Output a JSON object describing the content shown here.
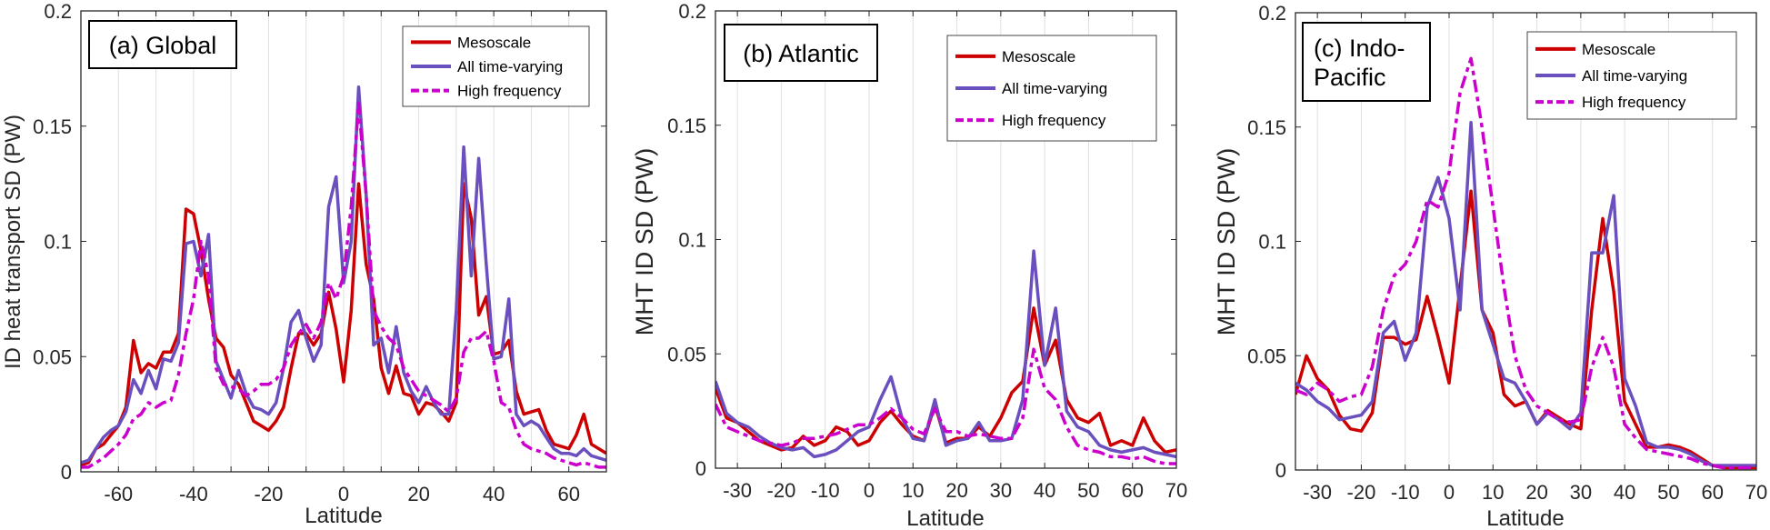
{
  "colors": {
    "mesoscale": "#cc0000",
    "all_time_varying": "#6a4fbf",
    "high_frequency": "#cc00cc",
    "axis": "#262626",
    "grid": "#e0e0e0"
  },
  "chart_data": [
    {
      "type": "line",
      "panel": "a",
      "annotation": "(a) Global",
      "title": "",
      "xlabel": "Latitude",
      "ylabel": "ID heat transport  SD (PW)",
      "xlim": [
        -70,
        70
      ],
      "ylim": [
        0,
        0.2
      ],
      "xticks": [
        -60,
        -40,
        -20,
        0,
        20,
        40,
        60
      ],
      "xtick_labels": [
        "-60",
        "-40",
        "-20",
        "0",
        "20",
        "40",
        "60"
      ],
      "xgrid": [
        -60,
        -50,
        -40,
        -30,
        -20,
        -10,
        0,
        10,
        20,
        30,
        40,
        50,
        60
      ],
      "yticks": [
        0,
        0.05,
        0.1,
        0.15,
        0.2
      ],
      "ytick_labels": [
        "0",
        "0.05",
        "0.1",
        "0.15",
        "0.2"
      ],
      "grid": "vertical",
      "legend_position": "top-right",
      "x": [
        -70,
        -68,
        -66,
        -64,
        -62,
        -60,
        -58,
        -56,
        -54,
        -52,
        -50,
        -48,
        -46,
        -44,
        -42,
        -40,
        -38,
        -36,
        -34,
        -32,
        -30,
        -28,
        -26,
        -24,
        -22,
        -20,
        -18,
        -16,
        -14,
        -12,
        -10,
        -8,
        -6,
        -4,
        -2,
        0,
        2,
        4,
        6,
        8,
        10,
        12,
        14,
        16,
        18,
        20,
        22,
        24,
        26,
        28,
        30,
        32,
        34,
        36,
        38,
        40,
        42,
        44,
        46,
        48,
        50,
        52,
        54,
        56,
        58,
        60,
        62,
        64,
        66,
        68,
        70
      ],
      "series": [
        {
          "name": "Mesoscale",
          "style": "solid",
          "color_key": "mesoscale",
          "values": [
            0.003,
            0.004,
            0.01,
            0.012,
            0.016,
            0.02,
            0.028,
            0.057,
            0.043,
            0.047,
            0.045,
            0.052,
            0.052,
            0.06,
            0.114,
            0.112,
            0.096,
            0.075,
            0.058,
            0.054,
            0.042,
            0.038,
            0.03,
            0.022,
            0.02,
            0.018,
            0.022,
            0.028,
            0.045,
            0.06,
            0.06,
            0.055,
            0.06,
            0.078,
            0.062,
            0.039,
            0.07,
            0.125,
            0.09,
            0.075,
            0.045,
            0.034,
            0.046,
            0.034,
            0.033,
            0.025,
            0.03,
            0.029,
            0.026,
            0.022,
            0.03,
            0.125,
            0.11,
            0.068,
            0.076,
            0.051,
            0.052,
            0.057,
            0.035,
            0.025,
            0.026,
            0.027,
            0.018,
            0.012,
            0.011,
            0.01,
            0.016,
            0.025,
            0.012,
            0.01,
            0.008
          ]
        },
        {
          "name": "All time-varying",
          "style": "solid",
          "color_key": "all_time_varying",
          "values": [
            0.004,
            0.005,
            0.01,
            0.015,
            0.018,
            0.02,
            0.026,
            0.04,
            0.034,
            0.044,
            0.036,
            0.049,
            0.048,
            0.056,
            0.099,
            0.1,
            0.085,
            0.103,
            0.048,
            0.04,
            0.032,
            0.044,
            0.034,
            0.028,
            0.027,
            0.025,
            0.03,
            0.045,
            0.065,
            0.07,
            0.058,
            0.048,
            0.055,
            0.115,
            0.128,
            0.082,
            0.1,
            0.167,
            0.12,
            0.055,
            0.058,
            0.043,
            0.063,
            0.043,
            0.035,
            0.03,
            0.037,
            0.03,
            0.025,
            0.025,
            0.07,
            0.141,
            0.085,
            0.136,
            0.09,
            0.049,
            0.05,
            0.075,
            0.025,
            0.02,
            0.022,
            0.02,
            0.015,
            0.01,
            0.008,
            0.008,
            0.007,
            0.01,
            0.007,
            0.006,
            0.005
          ]
        },
        {
          "name": "High frequency",
          "style": "dashdot",
          "color_key": "high_frequency",
          "values": [
            0.002,
            0.002,
            0.004,
            0.006,
            0.009,
            0.012,
            0.016,
            0.023,
            0.025,
            0.03,
            0.028,
            0.03,
            0.031,
            0.042,
            0.06,
            0.075,
            0.1,
            0.085,
            0.045,
            0.038,
            0.037,
            0.036,
            0.033,
            0.035,
            0.038,
            0.038,
            0.04,
            0.045,
            0.055,
            0.06,
            0.064,
            0.058,
            0.065,
            0.082,
            0.075,
            0.085,
            0.115,
            0.16,
            0.12,
            0.07,
            0.063,
            0.058,
            0.055,
            0.045,
            0.04,
            0.035,
            0.033,
            0.031,
            0.029,
            0.026,
            0.032,
            0.052,
            0.058,
            0.058,
            0.061,
            0.048,
            0.03,
            0.028,
            0.018,
            0.012,
            0.01,
            0.009,
            0.008,
            0.006,
            0.005,
            0.004,
            0.003,
            0.004,
            0.003,
            0.002,
            0.002
          ]
        }
      ]
    },
    {
      "type": "line",
      "panel": "b",
      "annotation": "(b) Atlantic",
      "title": "",
      "xlabel": "Latitude",
      "ylabel": "MHT ID SD  (PW)",
      "xlim": [
        -35,
        70
      ],
      "ylim": [
        0,
        0.2
      ],
      "xticks": [
        -30,
        -20,
        -10,
        0,
        10,
        20,
        30,
        40,
        50,
        60,
        70
      ],
      "xtick_labels": [
        "-30",
        "-20",
        "-10",
        "0",
        "10",
        "20",
        "30",
        "40",
        "50",
        "60",
        "70"
      ],
      "xgrid": [
        -30,
        -20,
        -10,
        0,
        10,
        20,
        30,
        40,
        50,
        60
      ],
      "yticks": [
        0,
        0.05,
        0.1,
        0.15,
        0.2
      ],
      "ytick_labels": [
        "0",
        "0.05",
        "0.1",
        "0.15",
        "0.2"
      ],
      "grid": "vertical",
      "legend_position": "top-right",
      "x": [
        -35,
        -32.5,
        -30,
        -27.5,
        -25,
        -22.5,
        -20,
        -17.5,
        -15,
        -12.5,
        -10,
        -7.5,
        -5,
        -2.5,
        0,
        2.5,
        5,
        7.5,
        10,
        12.5,
        15,
        17.5,
        20,
        22.5,
        25,
        27.5,
        30,
        32.5,
        35,
        37.5,
        40,
        42.5,
        45,
        47.5,
        50,
        52.5,
        55,
        57.5,
        60,
        62.5,
        65,
        67.5,
        70
      ],
      "series": [
        {
          "name": "Mesoscale",
          "style": "solid",
          "color_key": "mesoscale",
          "values": [
            0.035,
            0.022,
            0.02,
            0.016,
            0.012,
            0.01,
            0.008,
            0.009,
            0.014,
            0.01,
            0.012,
            0.018,
            0.016,
            0.01,
            0.012,
            0.02,
            0.025,
            0.019,
            0.014,
            0.012,
            0.028,
            0.011,
            0.013,
            0.013,
            0.018,
            0.014,
            0.022,
            0.033,
            0.038,
            0.07,
            0.045,
            0.056,
            0.03,
            0.022,
            0.02,
            0.024,
            0.01,
            0.012,
            0.01,
            0.022,
            0.012,
            0.007,
            0.008
          ]
        },
        {
          "name": "All time-varying",
          "style": "solid",
          "color_key": "all_time_varying",
          "values": [
            0.038,
            0.024,
            0.02,
            0.018,
            0.014,
            0.011,
            0.009,
            0.008,
            0.009,
            0.005,
            0.006,
            0.008,
            0.012,
            0.016,
            0.018,
            0.03,
            0.04,
            0.022,
            0.013,
            0.012,
            0.03,
            0.01,
            0.012,
            0.013,
            0.02,
            0.012,
            0.012,
            0.013,
            0.03,
            0.095,
            0.045,
            0.07,
            0.025,
            0.018,
            0.016,
            0.01,
            0.008,
            0.007,
            0.008,
            0.009,
            0.007,
            0.006,
            0.005
          ]
        },
        {
          "name": "High frequency",
          "style": "dashdot",
          "color_key": "high_frequency",
          "values": [
            0.028,
            0.018,
            0.016,
            0.014,
            0.012,
            0.011,
            0.01,
            0.011,
            0.013,
            0.013,
            0.014,
            0.015,
            0.017,
            0.019,
            0.019,
            0.022,
            0.026,
            0.022,
            0.017,
            0.015,
            0.026,
            0.016,
            0.016,
            0.014,
            0.015,
            0.014,
            0.013,
            0.013,
            0.022,
            0.052,
            0.035,
            0.03,
            0.018,
            0.01,
            0.008,
            0.007,
            0.005,
            0.005,
            0.004,
            0.005,
            0.003,
            0.002,
            0.002
          ]
        }
      ]
    },
    {
      "type": "line",
      "panel": "c",
      "annotation": "(c) Indo-\nPacific",
      "annotation_lines": [
        "(c) Indo-",
        "Pacific"
      ],
      "title": "",
      "xlabel": "Latitude",
      "ylabel": "MHT ID SD  (PW)",
      "xlim": [
        -35,
        70
      ],
      "ylim": [
        0,
        0.2
      ],
      "xticks": [
        -30,
        -20,
        -10,
        0,
        10,
        20,
        30,
        40,
        50,
        60,
        70
      ],
      "xtick_labels": [
        "-30",
        "-20",
        "-10",
        "0",
        "10",
        "20",
        "30",
        "40",
        "50",
        "60",
        "70"
      ],
      "xgrid": [
        -30,
        -20,
        -10,
        0,
        10,
        20,
        30,
        40,
        50,
        60
      ],
      "yticks": [
        0,
        0.05,
        0.1,
        0.15,
        0.2
      ],
      "ytick_labels": [
        "0",
        "0.05",
        "0.1",
        "0.15",
        "0.2"
      ],
      "grid": "vertical",
      "legend_position": "top-right",
      "x": [
        -35,
        -32.5,
        -30,
        -27.5,
        -25,
        -22.5,
        -20,
        -17.5,
        -15,
        -12.5,
        -10,
        -7.5,
        -5,
        -2.5,
        0,
        2.5,
        5,
        7.5,
        10,
        12.5,
        15,
        17.5,
        20,
        22.5,
        25,
        27.5,
        30,
        32.5,
        35,
        37.5,
        40,
        42.5,
        45,
        47.5,
        50,
        52.5,
        55,
        57.5,
        60,
        62.5,
        65,
        67.5,
        70
      ],
      "series": [
        {
          "name": "Mesoscale",
          "style": "solid",
          "color_key": "mesoscale",
          "values": [
            0.033,
            0.05,
            0.04,
            0.035,
            0.024,
            0.018,
            0.017,
            0.025,
            0.058,
            0.058,
            0.055,
            0.057,
            0.076,
            0.058,
            0.038,
            0.08,
            0.122,
            0.07,
            0.06,
            0.033,
            0.028,
            0.03,
            0.02,
            0.026,
            0.023,
            0.02,
            0.018,
            0.07,
            0.11,
            0.078,
            0.03,
            0.02,
            0.01,
            0.01,
            0.011,
            0.01,
            0.008,
            0.005,
            0.002,
            0.001,
            0.001,
            0.001,
            0.001
          ]
        },
        {
          "name": "All time-varying",
          "style": "solid",
          "color_key": "all_time_varying",
          "values": [
            0.038,
            0.035,
            0.03,
            0.027,
            0.022,
            0.023,
            0.024,
            0.03,
            0.06,
            0.065,
            0.048,
            0.06,
            0.115,
            0.128,
            0.11,
            0.07,
            0.152,
            0.07,
            0.055,
            0.04,
            0.038,
            0.03,
            0.02,
            0.025,
            0.022,
            0.018,
            0.025,
            0.095,
            0.095,
            0.12,
            0.04,
            0.028,
            0.012,
            0.01,
            0.01,
            0.009,
            0.007,
            0.004,
            0.002,
            0.002,
            0.002,
            0.002,
            0.002
          ]
        },
        {
          "name": "High frequency",
          "style": "dashdot",
          "color_key": "high_frequency",
          "values": [
            0.035,
            0.033,
            0.038,
            0.035,
            0.03,
            0.032,
            0.033,
            0.045,
            0.07,
            0.085,
            0.09,
            0.1,
            0.118,
            0.115,
            0.13,
            0.165,
            0.18,
            0.15,
            0.115,
            0.08,
            0.05,
            0.035,
            0.028,
            0.025,
            0.022,
            0.021,
            0.022,
            0.045,
            0.058,
            0.045,
            0.02,
            0.014,
            0.009,
            0.008,
            0.007,
            0.006,
            0.005,
            0.003,
            0.002,
            0.001,
            0.001,
            0.001,
            0.001
          ]
        }
      ]
    }
  ]
}
